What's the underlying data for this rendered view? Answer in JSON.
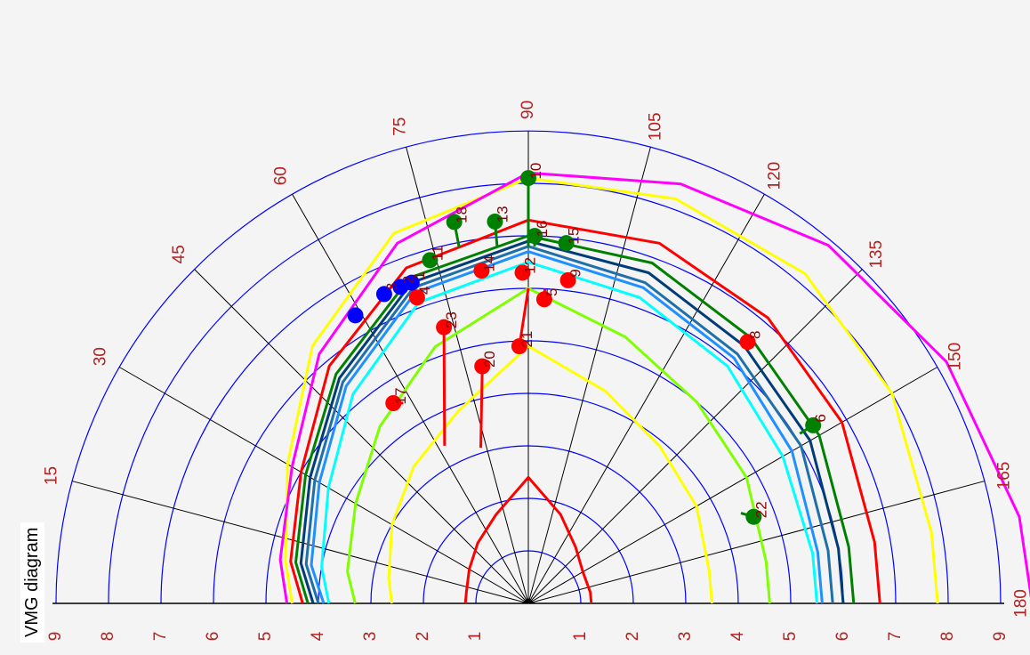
{
  "chart_data": {
    "type": "polar-half",
    "title": "VMG diagram",
    "angle_range": [
      0,
      180
    ],
    "angle_ticks": [
      15,
      30,
      45,
      60,
      75,
      90,
      105,
      120,
      135,
      150,
      165,
      180
    ],
    "radial_ticks_left": [
      "9",
      "8",
      "7",
      "6",
      "5",
      "4",
      "3",
      "2",
      "1"
    ],
    "radial_ticks_right": [
      "1",
      "2",
      "3",
      "4",
      "5",
      "6",
      "7",
      "8",
      "9"
    ],
    "rmax": 9,
    "grid": true,
    "colors": {
      "ring": "#0000ff",
      "spoke": "#000000",
      "tick_label": "#b22222",
      "label": "#8b0000",
      "marker_red": "#ff0000",
      "marker_green": "#008000",
      "marker_blue": "#0000ff"
    },
    "curves": [
      {
        "color": "#ff0000",
        "points": [
          [
            0,
            1.2
          ],
          [
            10,
            1.2
          ],
          [
            30,
            1.3
          ],
          [
            50,
            1.5
          ],
          [
            70,
            1.8
          ],
          [
            90,
            2.4
          ],
          [
            110,
            1.8
          ],
          [
            130,
            1.4
          ],
          [
            150,
            1.2
          ],
          [
            170,
            1.2
          ],
          [
            180,
            1.2
          ]
        ]
      },
      {
        "color": "#ffff00",
        "points": [
          [
            0,
            2.6
          ],
          [
            10,
            2.7
          ],
          [
            30,
            3.0
          ],
          [
            50,
            3.4
          ],
          [
            70,
            3.9
          ],
          [
            90,
            4.9
          ],
          [
            110,
            4.3
          ],
          [
            130,
            3.9
          ],
          [
            150,
            3.7
          ],
          [
            170,
            3.5
          ],
          [
            180,
            3.5
          ]
        ]
      },
      {
        "color": "#7fff00",
        "points": [
          [
            0,
            3.3
          ],
          [
            10,
            3.5
          ],
          [
            30,
            3.8
          ],
          [
            50,
            4.4
          ],
          [
            70,
            5.2
          ],
          [
            90,
            6.0
          ],
          [
            110,
            5.4
          ],
          [
            130,
            5.0
          ],
          [
            150,
            4.8
          ],
          [
            170,
            4.6
          ],
          [
            180,
            4.6
          ]
        ]
      },
      {
        "color": "#00ffff",
        "points": [
          [
            0,
            3.8
          ],
          [
            10,
            4.0
          ],
          [
            30,
            4.4
          ],
          [
            50,
            5.2
          ],
          [
            70,
            6.1
          ],
          [
            90,
            6.5
          ],
          [
            110,
            6.2
          ],
          [
            130,
            5.9
          ],
          [
            150,
            5.6
          ],
          [
            170,
            5.5
          ],
          [
            180,
            5.5
          ]
        ]
      },
      {
        "color": "#1e90ff",
        "points": [
          [
            0,
            3.9
          ],
          [
            10,
            4.2
          ],
          [
            30,
            4.6
          ],
          [
            50,
            5.4
          ],
          [
            70,
            6.3
          ],
          [
            90,
            6.7
          ],
          [
            110,
            6.4
          ],
          [
            130,
            6.1
          ],
          [
            150,
            5.8
          ],
          [
            170,
            5.6
          ],
          [
            180,
            5.6
          ]
        ]
      },
      {
        "color": "#1f6fa8",
        "points": [
          [
            0,
            4.0
          ],
          [
            10,
            4.3
          ],
          [
            30,
            4.7
          ],
          [
            50,
            5.5
          ],
          [
            70,
            6.4
          ],
          [
            90,
            6.8
          ],
          [
            110,
            6.5
          ],
          [
            130,
            6.2
          ],
          [
            150,
            6.0
          ],
          [
            170,
            5.8
          ],
          [
            180,
            5.8
          ]
        ]
      },
      {
        "color": "#003c78",
        "points": [
          [
            0,
            4.1
          ],
          [
            10,
            4.4
          ],
          [
            30,
            4.8
          ],
          [
            50,
            5.6
          ],
          [
            70,
            6.5
          ],
          [
            90,
            6.9
          ],
          [
            110,
            6.7
          ],
          [
            130,
            6.4
          ],
          [
            150,
            6.2
          ],
          [
            170,
            6.0
          ],
          [
            180,
            6.0
          ]
        ]
      },
      {
        "color": "#008000",
        "points": [
          [
            0,
            4.2
          ],
          [
            10,
            4.5
          ],
          [
            30,
            4.9
          ],
          [
            50,
            5.7
          ],
          [
            70,
            6.6
          ],
          [
            90,
            7.0
          ],
          [
            110,
            6.9
          ],
          [
            130,
            6.6
          ],
          [
            150,
            6.4
          ],
          [
            170,
            6.2
          ],
          [
            180,
            6.2
          ]
        ]
      },
      {
        "color": "#ff0000",
        "points": [
          [
            0,
            4.3
          ],
          [
            10,
            4.6
          ],
          [
            30,
            5.0
          ],
          [
            50,
            5.9
          ],
          [
            70,
            6.8
          ],
          [
            90,
            7.3
          ],
          [
            110,
            7.3
          ],
          [
            130,
            7.1
          ],
          [
            150,
            6.9
          ],
          [
            170,
            6.7
          ],
          [
            180,
            6.7
          ]
        ]
      },
      {
        "color": "#ffff00",
        "points": [
          [
            0,
            4.5
          ],
          [
            10,
            4.7
          ],
          [
            30,
            5.3
          ],
          [
            50,
            6.4
          ],
          [
            70,
            7.5
          ],
          [
            90,
            8.1
          ],
          [
            110,
            8.2
          ],
          [
            130,
            8.2
          ],
          [
            150,
            8.0
          ],
          [
            170,
            7.8
          ],
          [
            180,
            7.8
          ]
        ]
      },
      {
        "color": "#ff00ff",
        "points": [
          [
            0,
            4.6
          ],
          [
            10,
            4.8
          ],
          [
            30,
            5.2
          ],
          [
            50,
            6.2
          ],
          [
            70,
            7.3
          ],
          [
            90,
            8.2
          ],
          [
            110,
            8.5
          ],
          [
            130,
            8.9
          ],
          [
            150,
            9.2
          ],
          [
            170,
            9.5
          ],
          [
            180,
            9.6
          ]
        ]
      }
    ],
    "markers": [
      {
        "label": "23",
        "color": "red",
        "angle": 73,
        "r": 5.5,
        "tail": [
          62,
          3.4
        ]
      },
      {
        "label": "20",
        "color": "red",
        "angle": 79,
        "r": 4.6,
        "tail": [
          73,
          3.1
        ]
      },
      {
        "label": "21",
        "color": "red",
        "angle": 88,
        "r": 4.9,
        "tail": [
          90,
          6.0
        ]
      },
      {
        "label": "17",
        "color": "red",
        "angle": 56,
        "r": 4.6,
        "tail": [
          58,
          4.5
        ]
      },
      {
        "label": "4",
        "color": "red",
        "angle": 70,
        "r": 6.2,
        "tail": [
          70,
          6.3
        ]
      },
      {
        "label": "14",
        "color": "red",
        "angle": 82,
        "r": 6.4,
        "tail": [
          82,
          6.3
        ]
      },
      {
        "label": "12",
        "color": "red",
        "angle": 89,
        "r": 6.3,
        "tail": [
          88,
          6.2
        ]
      },
      {
        "label": "5",
        "color": "red",
        "angle": 93,
        "r": 5.8,
        "tail": [
          93,
          6.0
        ]
      },
      {
        "label": "9",
        "color": "red",
        "angle": 97,
        "r": 6.2,
        "tail": [
          98,
          6.2
        ]
      },
      {
        "label": "8",
        "color": "red",
        "angle": 130,
        "r": 6.5,
        "tail": [
          130,
          6.4
        ]
      },
      {
        "label": "10",
        "color": "green",
        "angle": 90,
        "r": 8.1,
        "tail": [
          90,
          6.8
        ]
      },
      {
        "label": "13",
        "color": "green",
        "angle": 85,
        "r": 7.3,
        "tail": [
          85,
          6.8
        ]
      },
      {
        "label": "18",
        "color": "green",
        "angle": 79,
        "r": 7.4,
        "tail": [
          79,
          6.9
        ]
      },
      {
        "label": "16",
        "color": "green",
        "angle": 91,
        "r": 7.0,
        "tail": [
          91,
          6.8
        ]
      },
      {
        "label": "15",
        "color": "green",
        "angle": 96,
        "r": 6.9,
        "tail": [
          96,
          6.8
        ]
      },
      {
        "label": "11",
        "color": "green",
        "angle": 74,
        "r": 6.8,
        "tail": [
          74,
          6.7
        ]
      },
      {
        "label": "6",
        "color": "green",
        "angle": 148,
        "r": 6.4,
        "tail": [
          148,
          6.1
        ]
      },
      {
        "label": "22",
        "color": "green",
        "angle": 159,
        "r": 4.6,
        "tail": [
          157,
          4.4
        ]
      },
      {
        "label": "1",
        "color": "blue",
        "angle": 70,
        "r": 6.5,
        "tail": [
          70,
          6.5
        ]
      },
      {
        "label": "2",
        "color": "blue",
        "angle": 68,
        "r": 6.5,
        "tail": [
          68,
          6.5
        ]
      },
      {
        "label": "3",
        "color": "blue",
        "angle": 65,
        "r": 6.5,
        "tail": [
          65,
          6.5
        ]
      },
      {
        "label": "",
        "color": "blue",
        "angle": 59,
        "r": 6.4,
        "tail": [
          59,
          6.4
        ]
      }
    ]
  }
}
